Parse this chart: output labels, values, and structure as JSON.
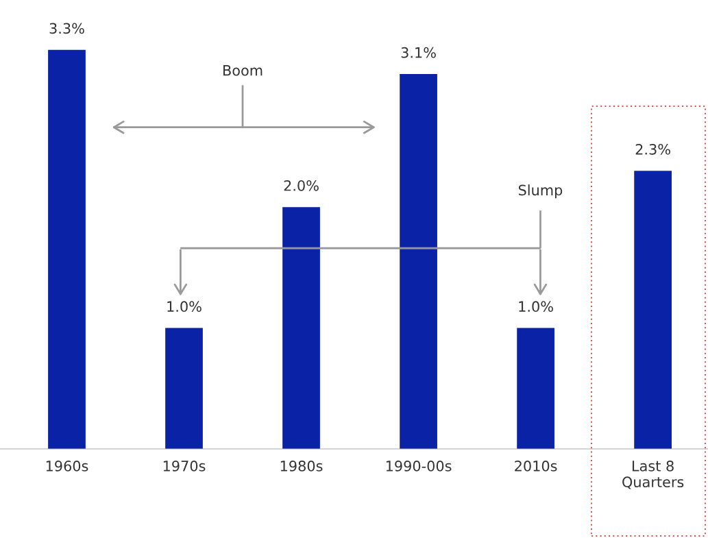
{
  "chart_data": {
    "type": "bar",
    "categories": [
      "1960s",
      "1970s",
      "1980s",
      "1990-00s",
      "2010s",
      "Last 8\nQuarters"
    ],
    "values": [
      3.3,
      1.0,
      2.0,
      3.1,
      1.0,
      2.3
    ],
    "value_labels": [
      "3.3%",
      "1.0%",
      "2.0%",
      "3.1%",
      "1.0%",
      "2.3%"
    ],
    "color": "#0a23a6",
    "tick_labels": "x",
    "grid": false,
    "legend": false,
    "annotations": [
      "Boom",
      "Slump"
    ]
  }
}
